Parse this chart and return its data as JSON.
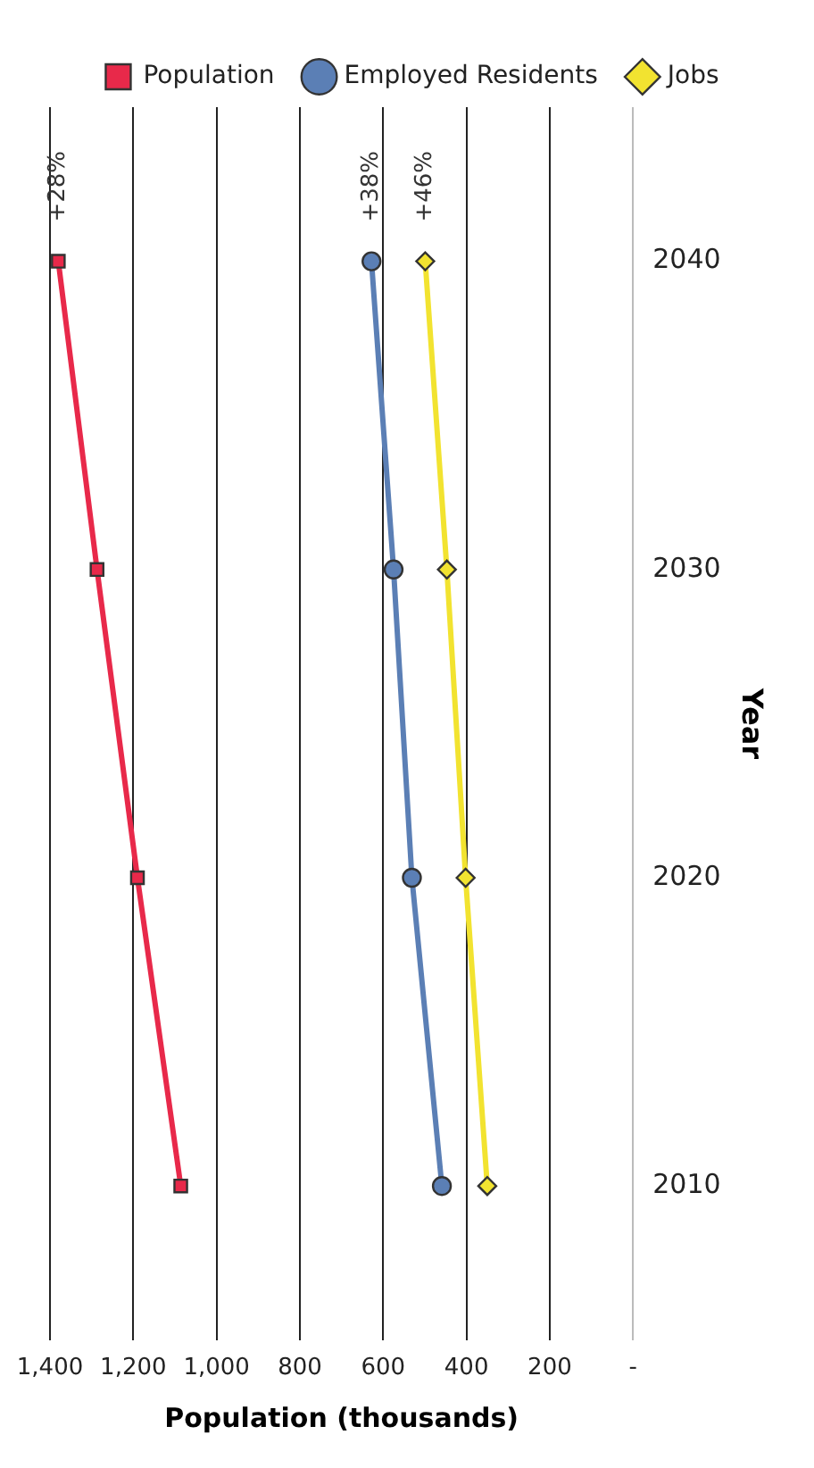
{
  "chart_data": {
    "type": "line",
    "orientation": "horizontal",
    "xlabel": "Population (thousands)",
    "ylabel": "Year",
    "categories": [
      "2040",
      "2030",
      "2020",
      "2010"
    ],
    "series": [
      {
        "name": "Population",
        "color": "#e8294a",
        "marker": "square",
        "values": [
          1380,
          1287,
          1190,
          1086
        ]
      },
      {
        "name": "Employed Residents",
        "color": "#5b7fb5",
        "marker": "circle",
        "values": [
          628,
          575,
          531,
          459
        ]
      },
      {
        "name": "Jobs",
        "color": "#f2e330",
        "marker": "diamond",
        "values": [
          499,
          447,
          402,
          350
        ]
      }
    ],
    "xlim": [
      1400,
      0
    ],
    "xticks": [
      {
        "value": 0,
        "label": "-"
      },
      200,
      400,
      600,
      800,
      {
        "value": 1000,
        "label": "1,000"
      },
      {
        "value": 1200,
        "label": "1,200"
      },
      {
        "value": 1400,
        "label": "1,400"
      }
    ],
    "grid": "x",
    "legend": "top",
    "annotations": [
      {
        "text": "+28%",
        "x": 1380,
        "y": "2040"
      },
      {
        "text": "+38%",
        "x": 628,
        "y": "2040"
      },
      {
        "text": "+46%",
        "x": 499,
        "y": "2040"
      }
    ]
  }
}
